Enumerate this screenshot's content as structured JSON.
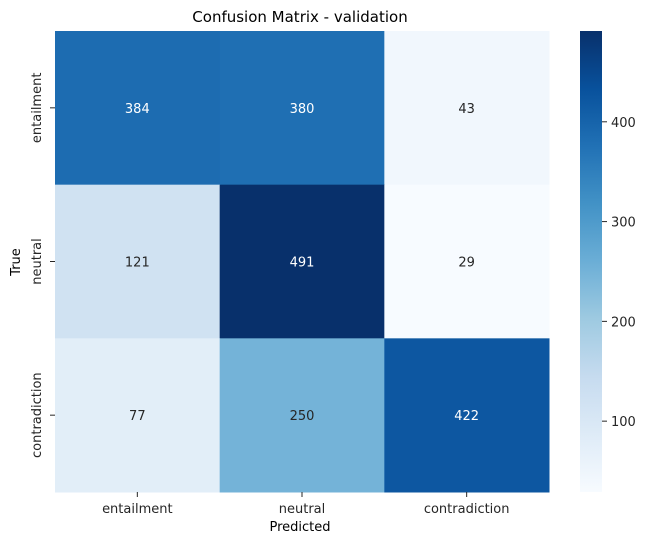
{
  "chart_data": {
    "type": "heatmap",
    "title": "Confusion Matrix - validation",
    "xlabel": "Predicted",
    "ylabel": "True",
    "x_categories": [
      "entailment",
      "neutral",
      "contradiction"
    ],
    "y_categories": [
      "entailment",
      "neutral",
      "contradiction"
    ],
    "values": [
      [
        384,
        380,
        43
      ],
      [
        121,
        491,
        29
      ],
      [
        77,
        250,
        422
      ]
    ],
    "colormap": "Blues",
    "color_range": [
      29,
      491
    ],
    "colorbar_ticks": [
      100,
      200,
      300,
      400
    ],
    "colorbar_tick_labels": [
      "100",
      "200",
      "300",
      "400"
    ]
  }
}
